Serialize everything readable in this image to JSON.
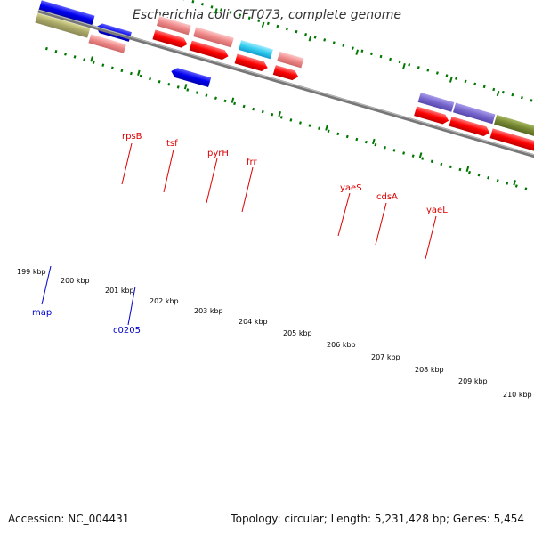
{
  "title": "Escherichia coli CFT073, complete genome",
  "accession": "Accession: NC_004431",
  "topology": "Topology: circular; Length: 5,231,428 bp; Genes: 5,454",
  "ticks": [
    "199 kbp",
    "200 kbp",
    "201 kbp",
    "202 kbp",
    "203 kbp",
    "204 kbp",
    "205 kbp",
    "206 kbp",
    "207 kbp",
    "208 kbp",
    "209 kbp",
    "210 kbp"
  ],
  "gene_labels_top": [
    "rpsB",
    "tsf",
    "pyrH",
    "frr",
    "yaeS",
    "cdsA",
    "yaeL"
  ],
  "gene_labels_bottom": [
    "map",
    "c0205"
  ],
  "colors": {
    "forward_cds": "#ff0000",
    "reverse_cds": "#0000ee",
    "pink": "#ee8888",
    "cyan": "#33ccee",
    "purple": "#7766cc",
    "olive": "#778833",
    "khaki": "#aaa766",
    "tick_green": "#007700",
    "label_red": "#dd0000",
    "label_blue": "#0000cc"
  }
}
